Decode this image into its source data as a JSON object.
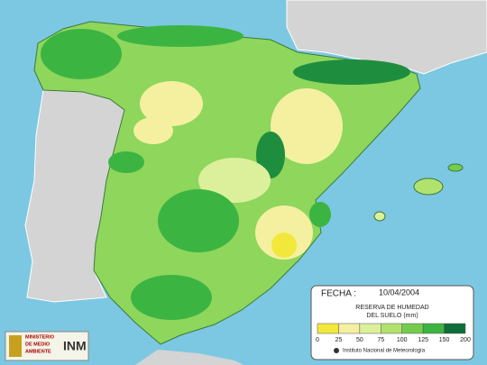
{
  "map": {
    "date_label": "FECHA :",
    "date": "10/04/2004",
    "legend": {
      "title_lines": [
        "RESERVA DE HUMEDAD",
        "DEL SUELO (mm)"
      ],
      "ticks": [
        0,
        25,
        50,
        75,
        100,
        125,
        150,
        200
      ],
      "colors": [
        "#f2e83c",
        "#f4f0a0",
        "#dcf09c",
        "#b2e26e",
        "#74cc4c",
        "#3cb442",
        "#0e6e3a"
      ]
    },
    "credit": "Instituto Nacional de Meteorología",
    "logos": {
      "ministry_lines": [
        "MINISTERIO",
        "DE MEDIO",
        "AMBIENTE"
      ],
      "institute": "INM"
    }
  }
}
